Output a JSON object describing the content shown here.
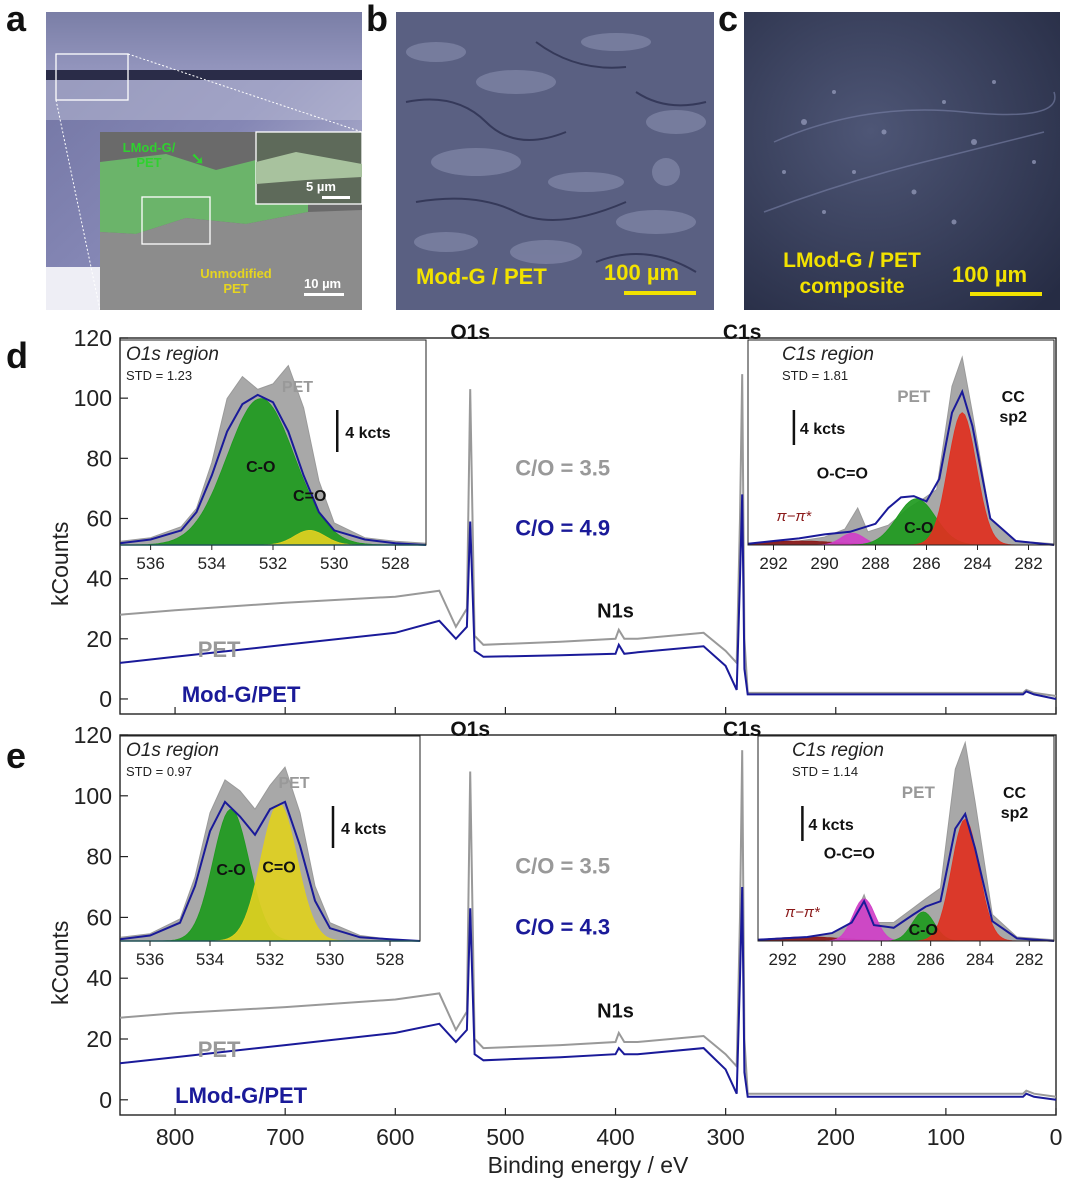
{
  "panel_letters": {
    "a": "a",
    "b": "b",
    "c": "c",
    "d": "d",
    "e": "e"
  },
  "panel_a": {
    "label_lmod": "LMod-G/\nPET",
    "label_unmod": "Unmodified\nPET",
    "scale_small": "5 µm",
    "scale_large": "10 µm"
  },
  "panel_b": {
    "label": "Mod-G / PET",
    "scale": "100 µm"
  },
  "panel_c": {
    "label": "LMod-G / PET\ncomposite",
    "scale": "100 µm"
  },
  "colors": {
    "pet_gray": "#999999",
    "mod_blue": "#1a1a99",
    "green_fill": "#1e9a1e",
    "yellow_fill": "#e0d020",
    "red_fill": "#e03020",
    "magenta_fill": "#d040c8",
    "pi_color": "#8b1a1a",
    "label_yellow": "#f2e200"
  },
  "chart_data": [
    {
      "id": "d",
      "type": "line",
      "xlabel": "Binding energy / eV",
      "ylabel": "kCounts",
      "xlim": [
        850,
        0
      ],
      "ylim": [
        -5,
        120
      ],
      "yticks": [
        0,
        20,
        40,
        60,
        80,
        100,
        120
      ],
      "peak_labels": {
        "o1s": "O1s",
        "c1s": "C1s",
        "n1s": "N1s"
      },
      "ratio_pet": "C/O = 3.5",
      "ratio_mod": "C/O = 4.9",
      "series": [
        {
          "name": "PET",
          "x": [
            850,
            800,
            700,
            600,
            560,
            545,
            535,
            532,
            528,
            520,
            450,
            400,
            397,
            392,
            380,
            320,
            300,
            290,
            287,
            285,
            283,
            280,
            250,
            150,
            100,
            50,
            30,
            27,
            20,
            0
          ],
          "y": [
            28,
            29.5,
            32,
            34,
            36,
            24,
            30,
            103,
            21,
            18,
            19,
            20,
            23,
            20,
            20,
            22,
            16,
            12,
            60,
            108,
            20,
            2,
            2,
            2,
            2,
            2,
            2,
            3,
            2,
            1
          ]
        },
        {
          "name": "Mod-G/PET",
          "x": [
            850,
            800,
            700,
            600,
            560,
            545,
            535,
            532,
            528,
            520,
            450,
            400,
            397,
            392,
            380,
            320,
            300,
            290,
            287,
            285,
            283,
            280,
            250,
            150,
            100,
            50,
            30,
            27,
            20,
            0
          ],
          "y": [
            12,
            14,
            18,
            22,
            26,
            20,
            24,
            59,
            16,
            14,
            14.5,
            15,
            18,
            15,
            15.5,
            17.5,
            11,
            3,
            40,
            68,
            10,
            1.5,
            1.5,
            1.5,
            1.5,
            1.5,
            1.5,
            2.5,
            1.5,
            0
          ]
        }
      ],
      "series_labels": {
        "pet": "PET",
        "mod": "Mod-G/PET"
      },
      "inset_o1s": {
        "title": "O1s region",
        "std": "STD = 1.23",
        "xlim": [
          537,
          527
        ],
        "ticks": [
          536,
          534,
          532,
          530,
          528
        ],
        "envelope_x": [
          537,
          536,
          535,
          534.5,
          534,
          533.5,
          533,
          532.5,
          532,
          531.5,
          531,
          530.5,
          530,
          529,
          528,
          527
        ],
        "envelope_y": [
          2,
          4,
          10,
          20,
          45,
          80,
          92,
          85,
          88,
          98,
          75,
          35,
          12,
          4,
          2,
          1
        ],
        "fit_x": [
          537,
          536,
          535,
          534.5,
          534,
          533.5,
          533,
          532.5,
          532,
          531.5,
          531,
          530.5,
          530,
          529,
          528,
          527
        ],
        "fit_y": [
          1,
          3,
          8,
          18,
          38,
          62,
          77,
          82,
          78,
          62,
          38,
          18,
          8,
          3,
          1,
          0
        ],
        "peak_co": {
          "label": "C-O",
          "center": 532.4,
          "height": 80,
          "width": 1.1
        },
        "peak_c_eq_o": {
          "label": "C=O",
          "center": 530.8,
          "height": 8,
          "width": 0.5
        },
        "pet_label": "PET",
        "scale": "4 kcts"
      },
      "inset_c1s": {
        "title": "C1s region",
        "std": "STD = 1.81",
        "xlim": [
          293,
          281
        ],
        "ticks": [
          292,
          290,
          288,
          286,
          284,
          282
        ],
        "pet_x": [
          293,
          292,
          291,
          290,
          289.2,
          288.7,
          288.3,
          287.5,
          286.7,
          286.2,
          285.6,
          285,
          284.6,
          284.2,
          283.5,
          282.5,
          281
        ],
        "pet_y": [
          1,
          2,
          3,
          6,
          12,
          28,
          10,
          15,
          28,
          34,
          42,
          120,
          142,
          100,
          20,
          3,
          1
        ],
        "fit_x": [
          293,
          292,
          291,
          290,
          289,
          288,
          287.5,
          287,
          286.5,
          286,
          285.5,
          285,
          284.6,
          284.2,
          283.5,
          282.5,
          281
        ],
        "fit_y": [
          1,
          3,
          5,
          8,
          10,
          16,
          28,
          36,
          37,
          33,
          50,
          100,
          116,
          90,
          20,
          3,
          0
        ],
        "peak_sp2": {
          "label": "CC\nsp2",
          "center": 284.6,
          "height": 100,
          "width": 0.55
        },
        "peak_co": {
          "label": "C-O",
          "center": 286.4,
          "height": 35,
          "width": 0.75
        },
        "peak_oco": {
          "label": "O-C=O",
          "center": 288.9,
          "height": 9,
          "width": 0.45
        },
        "peak_pi": {
          "label": "π−π*",
          "center": 291,
          "height": 3,
          "width": 1.5
        },
        "pet_label": "PET",
        "scale": "4 kcts"
      }
    },
    {
      "id": "e",
      "type": "line",
      "xlabel": "Binding energy / eV",
      "ylabel": "kCounts",
      "xlim": [
        850,
        0
      ],
      "ylim": [
        -5,
        120
      ],
      "yticks": [
        0,
        20,
        40,
        60,
        80,
        100,
        120
      ],
      "xticks": [
        800,
        700,
        600,
        500,
        400,
        300,
        200,
        100,
        0
      ],
      "peak_labels": {
        "o1s": "O1s",
        "c1s": "C1s",
        "n1s": "N1s"
      },
      "ratio_pet": "C/O = 3.5",
      "ratio_mod": "C/O = 4.3",
      "series": [
        {
          "name": "PET",
          "x": [
            850,
            800,
            700,
            600,
            560,
            545,
            535,
            532,
            528,
            520,
            450,
            400,
            397,
            392,
            380,
            320,
            300,
            290,
            287,
            285,
            283,
            280,
            250,
            150,
            100,
            50,
            30,
            27,
            20,
            0
          ],
          "y": [
            27,
            28.5,
            30.5,
            33,
            35,
            23,
            29,
            108,
            20,
            17,
            18,
            19,
            22,
            19,
            19,
            21,
            15,
            11,
            60,
            115,
            20,
            2,
            2,
            2,
            2,
            2,
            2,
            3,
            2,
            1
          ]
        },
        {
          "name": "LMod-G/PET",
          "x": [
            850,
            800,
            700,
            600,
            560,
            545,
            535,
            532,
            528,
            520,
            450,
            400,
            397,
            392,
            380,
            320,
            300,
            290,
            287,
            285,
            283,
            280,
            250,
            150,
            100,
            50,
            30,
            27,
            20,
            0
          ],
          "y": [
            12,
            14,
            18,
            22,
            25,
            19,
            23,
            63,
            15,
            13,
            14,
            15,
            17,
            15,
            15,
            17,
            10,
            2,
            40,
            70,
            9,
            1,
            1,
            1,
            1,
            1,
            1,
            2,
            1,
            0
          ]
        }
      ],
      "series_labels": {
        "pet": "PET",
        "mod": "LMod-G/PET"
      },
      "inset_o1s": {
        "title": "O1s region",
        "std": "STD = 0.97",
        "xlim": [
          537,
          527
        ],
        "ticks": [
          536,
          534,
          532,
          530,
          528
        ],
        "envelope_x": [
          537,
          536,
          535,
          534.5,
          534,
          533.5,
          533,
          532.5,
          532,
          531.5,
          531,
          530.5,
          530,
          529,
          528,
          527
        ],
        "envelope_y": [
          2,
          4,
          12,
          35,
          70,
          88,
          82,
          72,
          85,
          95,
          70,
          30,
          10,
          3,
          1,
          0
        ],
        "fit_x": [
          537,
          536,
          535,
          534.5,
          534,
          533.5,
          533,
          532.5,
          532,
          531.5,
          531,
          530.5,
          530,
          529,
          528,
          527
        ],
        "fit_y": [
          1,
          3,
          10,
          30,
          60,
          76,
          68,
          58,
          72,
          76,
          52,
          22,
          7,
          2,
          1,
          0
        ],
        "peak_co": {
          "label": "C-O",
          "center": 533.3,
          "height": 72,
          "width": 0.6
        },
        "peak_c_eq_o": {
          "label": "C=O",
          "center": 531.7,
          "height": 75,
          "width": 0.6
        },
        "pet_label": "PET",
        "scale": "4 kcts"
      },
      "inset_c1s": {
        "title": "C1s region",
        "std": "STD = 1.14",
        "xlim": [
          293,
          281
        ],
        "ticks": [
          292,
          290,
          288,
          286,
          284,
          282
        ],
        "pet_x": [
          293,
          292,
          291,
          290,
          289.2,
          288.7,
          288.3,
          287.5,
          286.7,
          286.2,
          285.6,
          285,
          284.6,
          284.2,
          283.5,
          282.5,
          281
        ],
        "pet_y": [
          1,
          2,
          3,
          6,
          14,
          35,
          14,
          14,
          25,
          32,
          40,
          130,
          150,
          105,
          20,
          3,
          1
        ],
        "fit_x": [
          293,
          292,
          291,
          290,
          289.2,
          288.7,
          288.3,
          287.5,
          286.7,
          286.2,
          285.6,
          285,
          284.6,
          284.2,
          283.5,
          282.5,
          281
        ],
        "fit_y": [
          1,
          2,
          3,
          6,
          14,
          30,
          12,
          10,
          20,
          26,
          30,
          85,
          96,
          70,
          15,
          2,
          0
        ],
        "peak_sp2": {
          "label": "CC\nsp2",
          "center": 284.6,
          "height": 92,
          "width": 0.55
        },
        "peak_co": {
          "label": "C-O",
          "center": 286.3,
          "height": 22,
          "width": 0.45
        },
        "peak_oco": {
          "label": "O-C=O",
          "center": 288.7,
          "height": 32,
          "width": 0.45
        },
        "peak_pi": {
          "label": "π−π*",
          "center": 291,
          "height": 3,
          "width": 1.5
        },
        "pet_label": "PET",
        "scale": "4 kcts"
      }
    }
  ]
}
